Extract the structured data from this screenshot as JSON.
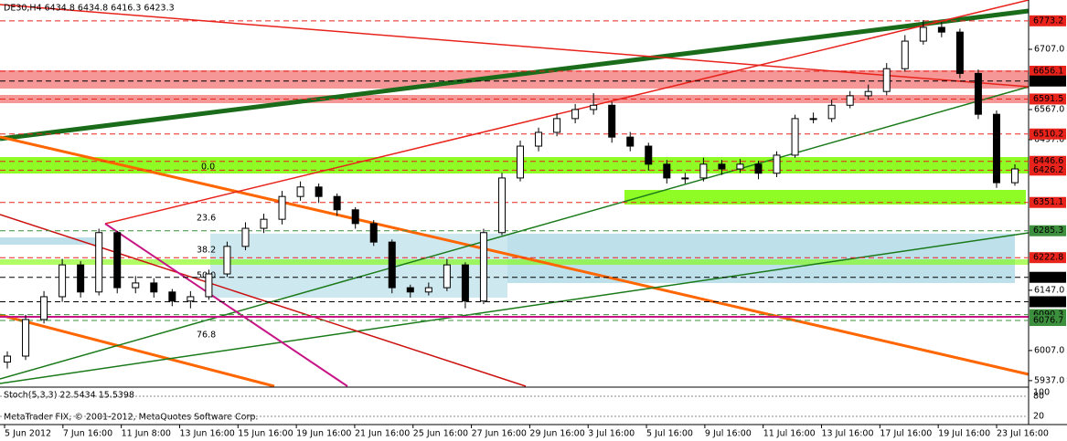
{
  "chart_data": {
    "type": "candlestick",
    "title": "DE30,H4 6434.8 6434.8 6416.3 6423.3",
    "footer": "MetaTrader FIX, © 2001-2012, MetaQuotes Software Corp.",
    "ylim": [
      5924,
      6811
    ],
    "yticks": [
      {
        "value": 5937,
        "label": "5937.0"
      },
      {
        "value": 6007,
        "label": "6007.0"
      },
      {
        "value": 6147,
        "label": "6147.0"
      },
      {
        "value": 6497,
        "label": "6497.0"
      },
      {
        "value": 6567,
        "label": "6567.0"
      },
      {
        "value": 6707,
        "label": "6707.0"
      }
    ],
    "levels": [
      {
        "value": 6773.2,
        "color": "#e8231c"
      },
      {
        "value": 6656.1,
        "color": "#e8231c"
      },
      {
        "value": 6633.3,
        "color": "#000000"
      },
      {
        "value": 6591.5,
        "color": "#e8231c"
      },
      {
        "value": 6510.2,
        "color": "#e8231c"
      },
      {
        "value": 6446.6,
        "color": "#e8231c"
      },
      {
        "value": 6426.2,
        "color": "#e8231c"
      },
      {
        "value": 6351.1,
        "color": "#e8231c"
      },
      {
        "value": 6285.3,
        "color": "#3c8f3c"
      },
      {
        "value": 6222.8,
        "color": "#e8231c"
      },
      {
        "value": 6177.1,
        "color": "#000000"
      },
      {
        "value": 6120.4,
        "color": "#000000"
      },
      {
        "value": 6090.3,
        "color": "#3c8f3c"
      },
      {
        "value": 6076.7,
        "color": "#3c8f3c"
      }
    ],
    "fib_labels": [
      "0.0",
      "23.6",
      "38.2",
      "50.0",
      "76.8"
    ],
    "x_axis_labels": [
      "5 Jun 2012",
      "7 Jun 16:00",
      "11 Jun 8:00",
      "13 Jun 16:00",
      "15 Jun 16:00",
      "19 Jun 16:00",
      "21 Jun 16:00",
      "25 Jun 16:00",
      "27 Jun 16:00",
      "29 Jun 16:00",
      "3 Jul 16:00",
      "5 Jul 16:00",
      "9 Jul 16:00",
      "11 Jul 16:00",
      "13 Jul 16:00",
      "17 Jul 16:00",
      "19 Jul 16:00",
      "23 Jul 16:00"
    ],
    "stoch_label": "Stoch(5,3,3) 22.5434 15.5398",
    "stoch_scale": [
      "100",
      "80",
      "20"
    ],
    "candles": [
      [
        5980,
        6005,
        5965,
        5994
      ],
      [
        5994,
        6090,
        5985,
        6079
      ],
      [
        6079,
        6145,
        6070,
        6132
      ],
      [
        6132,
        6220,
        6120,
        6206
      ],
      [
        6206,
        6215,
        6130,
        6143
      ],
      [
        6143,
        6290,
        6135,
        6281
      ],
      [
        6281,
        6285,
        6140,
        6153
      ],
      [
        6153,
        6180,
        6140,
        6164
      ],
      [
        6164,
        6175,
        6130,
        6143
      ],
      [
        6143,
        6150,
        6110,
        6122
      ],
      [
        6122,
        6145,
        6105,
        6132
      ],
      [
        6132,
        6195,
        6125,
        6185
      ],
      [
        6185,
        6260,
        6178,
        6249
      ],
      [
        6249,
        6305,
        6240,
        6291
      ],
      [
        6291,
        6325,
        6280,
        6312
      ],
      [
        6312,
        6378,
        6300,
        6365
      ],
      [
        6365,
        6400,
        6355,
        6387
      ],
      [
        6387,
        6395,
        6350,
        6365
      ],
      [
        6365,
        6372,
        6320,
        6334
      ],
      [
        6334,
        6340,
        6290,
        6302
      ],
      [
        6302,
        6310,
        6250,
        6259
      ],
      [
        6259,
        6265,
        6140,
        6153
      ],
      [
        6153,
        6160,
        6130,
        6143
      ],
      [
        6143,
        6165,
        6135,
        6153
      ],
      [
        6153,
        6220,
        6145,
        6206
      ],
      [
        6206,
        6212,
        6105,
        6122
      ],
      [
        6122,
        6290,
        6115,
        6281
      ],
      [
        6281,
        6420,
        6275,
        6408
      ],
      [
        6408,
        6495,
        6400,
        6482
      ],
      [
        6482,
        6525,
        6470,
        6514
      ],
      [
        6514,
        6558,
        6505,
        6546
      ],
      [
        6546,
        6580,
        6535,
        6567
      ],
      [
        6567,
        6605,
        6555,
        6577
      ],
      [
        6577,
        6585,
        6490,
        6503
      ],
      [
        6503,
        6515,
        6470,
        6482
      ],
      [
        6482,
        6490,
        6425,
        6440
      ],
      [
        6440,
        6450,
        6395,
        6408
      ],
      [
        6408,
        6420,
        6395,
        6408
      ],
      [
        6408,
        6455,
        6400,
        6440
      ],
      [
        6440,
        6450,
        6415,
        6429
      ],
      [
        6429,
        6452,
        6420,
        6440
      ],
      [
        6440,
        6448,
        6405,
        6419
      ],
      [
        6419,
        6470,
        6410,
        6461
      ],
      [
        6461,
        6555,
        6455,
        6546
      ],
      [
        6546,
        6560,
        6535,
        6546
      ],
      [
        6546,
        6590,
        6538,
        6577
      ],
      [
        6577,
        6610,
        6570,
        6599
      ],
      [
        6599,
        6625,
        6590,
        6609
      ],
      [
        6609,
        6675,
        6600,
        6662
      ],
      [
        6662,
        6740,
        6655,
        6726
      ],
      [
        6726,
        6775,
        6718,
        6758
      ],
      [
        6758,
        6770,
        6735,
        6747
      ],
      [
        6747,
        6755,
        6640,
        6651
      ],
      [
        6651,
        6660,
        6545,
        6556
      ],
      [
        6556,
        6565,
        6385,
        6397
      ],
      [
        6397,
        6440,
        6390,
        6429
      ]
    ]
  }
}
